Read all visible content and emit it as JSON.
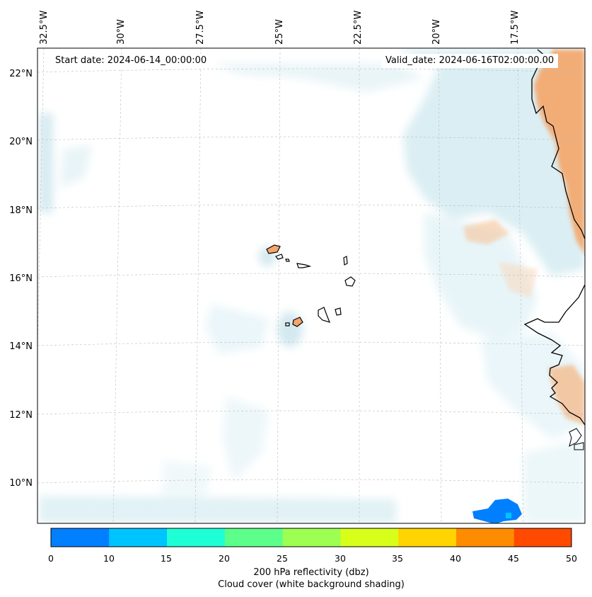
{
  "map": {
    "start_date_label": "Start date: 2024-06-14_00:00:00",
    "valid_date_label": "Valid_date: 2024-06-16T02:00:00.00",
    "longitude_labels": [
      "32.5°W",
      "30°W",
      "27.5°W",
      "25°W",
      "22.5°W",
      "20°W",
      "17.5°W"
    ],
    "latitude_labels": [
      "22°N",
      "20°N",
      "18°N",
      "16°N",
      "14°N",
      "12°N",
      "10°N"
    ],
    "extent": {
      "lon_min": "32.5°W",
      "lon_max": "16°W",
      "lat_min": "9°N",
      "lat_max": "22.8°N"
    },
    "regions": [
      "Cape Verde islands",
      "West African coast"
    ],
    "colors": {
      "cloud": "#cfe8ef",
      "land_warm": "#f4a66a",
      "coast": "#000000"
    }
  },
  "colorbar": {
    "ticks": [
      "0",
      "10",
      "15",
      "20",
      "25",
      "30",
      "35",
      "40",
      "45",
      "50"
    ],
    "colors": [
      "#0080ff",
      "#00c4ff",
      "#1fffd6",
      "#5cff8a",
      "#9cff52",
      "#d8ff1a",
      "#ffd400",
      "#ff8c00",
      "#ff4a00"
    ],
    "label_line1": "200 hPa reflectivity (dbz)",
    "label_line2": "Cloud cover (white background shading)"
  }
}
